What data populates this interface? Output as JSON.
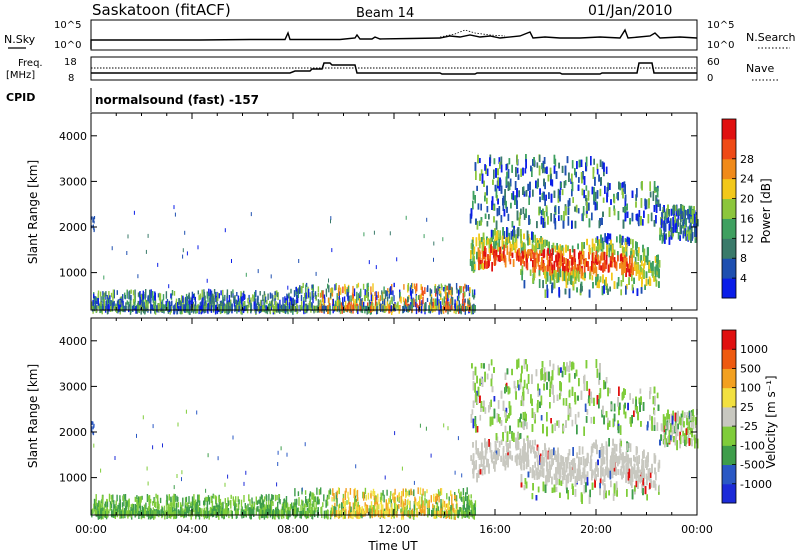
{
  "header": {
    "station": "Saskatoon (fitACF)",
    "beam": "Beam 14",
    "date": "01/Jan/2010"
  },
  "noise_panel": {
    "left_label": "N.Sky",
    "right_label": "N.Search",
    "tick_top": "10^5",
    "tick_bottom": "10^0"
  },
  "freq_panel": {
    "left_label_line1": "Freq.",
    "left_label_line2": "[MHz]",
    "left_ticks": [
      "18",
      "8"
    ],
    "right_label": "Nave",
    "right_ticks": [
      "60",
      "0"
    ]
  },
  "cpid": {
    "label": "CPID",
    "program": "normalsound (fast) -157"
  },
  "colors": {
    "scatter_power": [
      "#0a1de8",
      "#1e4fb0",
      "#3a7a6a",
      "#3fa060",
      "#8cc63c",
      "#f2c81a",
      "#f08a1a",
      "#ef4a16",
      "#e01010"
    ],
    "scatter_velocity": [
      "#1c2bd8",
      "#2a58c4",
      "#3e9d4a",
      "#7fcc3a",
      "#c8c8c0",
      "#f2e040",
      "#f2a020",
      "#ee5a10",
      "#e01010"
    ],
    "ground_scatter": "#c8c8c0"
  },
  "chart_data": [
    {
      "type": "heatmap",
      "panel": "power",
      "ylabel": "Slant Range [km]",
      "y_ticks": [
        "1000",
        "2000",
        "3000",
        "4000"
      ],
      "ylim": [
        180,
        4500
      ],
      "x_ticks": [
        "00:00",
        "04:00",
        "08:00",
        "12:00",
        "16:00",
        "20:00",
        "00:00"
      ],
      "xlim_hours": [
        0,
        24
      ],
      "colorbar": {
        "label": "Power [dB]",
        "ticks": [
          "4",
          "8",
          "12",
          "16",
          "20",
          "24",
          "28"
        ],
        "colors": [
          "#0a1de8",
          "#1e4fb0",
          "#3a7a6a",
          "#3fa060",
          "#8cc63c",
          "#f2c81a",
          "#f08a1a",
          "#ef4a16",
          "#e01010"
        ]
      }
    },
    {
      "type": "heatmap",
      "panel": "velocity",
      "ylabel": "Slant Range [km]",
      "y_ticks": [
        "1000",
        "2000",
        "3000",
        "4000"
      ],
      "ylim": [
        180,
        4500
      ],
      "x_ticks": [
        "00:00",
        "04:00",
        "08:00",
        "12:00",
        "16:00",
        "20:00",
        "00:00"
      ],
      "xlim_hours": [
        0,
        24
      ],
      "xlabel": "Time UT",
      "colorbar": {
        "label": "Velocity [m s⁻¹]",
        "ticks": [
          "1000",
          "500",
          "100",
          "25",
          "-25",
          "-100",
          "-500",
          "-1000"
        ],
        "colors": [
          "#1c2bd8",
          "#2a58c4",
          "#3e9d4a",
          "#7fcc3a",
          "#c8c8c0",
          "#f2e040",
          "#f2a020",
          "#ee5a10",
          "#e01010"
        ]
      }
    }
  ]
}
